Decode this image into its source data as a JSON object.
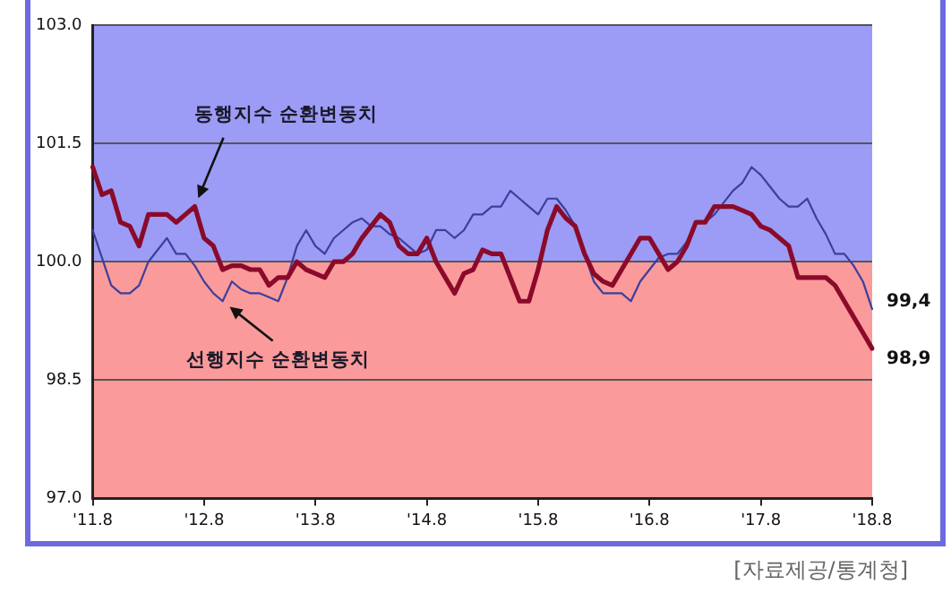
{
  "chart_data": {
    "type": "line",
    "categories": [
      "'11.8",
      null,
      null,
      null,
      null,
      null,
      null,
      null,
      null,
      null,
      null,
      null,
      "'12.8",
      null,
      null,
      null,
      null,
      null,
      null,
      null,
      null,
      null,
      null,
      null,
      "'13.8",
      null,
      null,
      null,
      null,
      null,
      null,
      null,
      null,
      null,
      null,
      null,
      "'14.8",
      null,
      null,
      null,
      null,
      null,
      null,
      null,
      null,
      null,
      null,
      null,
      "'15.8",
      null,
      null,
      null,
      null,
      null,
      null,
      null,
      null,
      null,
      null,
      null,
      "'16.8",
      null,
      null,
      null,
      null,
      null,
      null,
      null,
      null,
      null,
      null,
      null,
      "'17.8",
      null,
      null,
      null,
      null,
      null,
      null,
      null,
      null,
      null,
      null,
      null,
      "'18.8"
    ],
    "series": [
      {
        "name": "동행지수 순환변동치",
        "color": "#8b0a2a",
        "values": [
          101.2,
          100.85,
          100.9,
          100.5,
          100.45,
          100.2,
          100.6,
          100.6,
          100.6,
          100.5,
          100.6,
          100.7,
          100.3,
          100.2,
          99.9,
          99.95,
          99.95,
          99.9,
          99.9,
          99.7,
          99.8,
          99.8,
          100.0,
          99.9,
          99.85,
          99.8,
          100.0,
          100.0,
          100.1,
          100.3,
          100.45,
          100.6,
          100.5,
          100.2,
          100.1,
          100.1,
          100.3,
          100.0,
          99.8,
          99.6,
          99.85,
          99.9,
          100.15,
          100.1,
          100.1,
          99.8,
          99.5,
          99.5,
          99.9,
          100.4,
          100.7,
          100.55,
          100.45,
          100.1,
          99.85,
          99.75,
          99.7,
          99.9,
          100.1,
          100.3,
          100.3,
          100.1,
          99.9,
          100.0,
          100.2,
          100.5,
          100.5,
          100.7,
          100.7,
          100.7,
          100.65,
          100.6,
          100.45,
          100.4,
          100.3,
          100.2,
          99.8,
          99.8,
          99.8,
          99.8,
          99.7,
          99.5,
          99.3,
          99.1,
          98.9
        ],
        "value_labels": [
          null,
          null,
          null,
          null,
          null,
          null,
          null,
          null,
          null,
          null,
          null,
          null,
          null,
          null,
          null,
          null,
          null,
          null,
          null,
          null,
          null,
          null,
          null,
          null,
          null,
          null,
          null,
          null,
          null,
          null,
          null,
          null,
          null,
          null,
          null,
          null,
          null,
          null,
          null,
          null,
          null,
          null,
          null,
          null,
          null,
          null,
          null,
          null,
          null,
          null,
          null,
          null,
          null,
          null,
          null,
          null,
          null,
          null,
          null,
          null,
          null,
          null,
          null,
          null,
          null,
          null,
          null,
          null,
          null,
          null,
          null,
          null,
          null,
          null,
          null,
          null,
          null,
          null,
          null,
          null,
          null,
          null,
          null,
          null,
          "98,9"
        ]
      },
      {
        "name": "선행지수 순환변동치",
        "color": "#3b3f9e",
        "values": [
          100.4,
          100.05,
          99.7,
          99.6,
          99.6,
          99.7,
          100.0,
          100.15,
          100.3,
          100.1,
          100.1,
          99.95,
          99.75,
          99.6,
          99.5,
          99.75,
          99.65,
          99.6,
          99.6,
          99.55,
          99.5,
          99.8,
          100.2,
          100.4,
          100.2,
          100.1,
          100.3,
          100.4,
          100.5,
          100.55,
          100.45,
          100.45,
          100.35,
          100.3,
          100.2,
          100.1,
          100.15,
          100.4,
          100.4,
          100.3,
          100.4,
          100.6,
          100.6,
          100.7,
          100.7,
          100.9,
          100.8,
          100.7,
          100.6,
          100.8,
          100.8,
          100.65,
          100.45,
          100.1,
          99.75,
          99.6,
          99.6,
          99.6,
          99.5,
          99.75,
          99.9,
          100.05,
          100.1,
          100.1,
          100.25,
          100.5,
          100.5,
          100.6,
          100.75,
          100.9,
          101.0,
          101.2,
          101.1,
          100.95,
          100.8,
          100.7,
          100.7,
          100.8,
          100.55,
          100.35,
          100.1,
          100.1,
          99.95,
          99.75,
          99.4
        ],
        "value_labels": [
          null,
          null,
          null,
          null,
          null,
          null,
          null,
          null,
          null,
          null,
          null,
          null,
          null,
          null,
          null,
          null,
          null,
          null,
          null,
          null,
          null,
          null,
          null,
          null,
          null,
          null,
          null,
          null,
          null,
          null,
          null,
          null,
          null,
          null,
          null,
          null,
          null,
          null,
          null,
          null,
          null,
          null,
          null,
          null,
          null,
          null,
          null,
          null,
          null,
          null,
          null,
          null,
          null,
          null,
          null,
          null,
          null,
          null,
          null,
          null,
          null,
          null,
          null,
          null,
          null,
          null,
          null,
          null,
          null,
          null,
          null,
          null,
          null,
          null,
          null,
          null,
          null,
          null,
          null,
          null,
          null,
          null,
          null,
          null,
          "99,4"
        ]
      }
    ],
    "ylim": [
      97.0,
      103.0
    ],
    "yticks": [
      {
        "value": 97,
        "label": "97.0"
      },
      {
        "value": 98.5,
        "label": "98.5"
      },
      {
        "value": 100,
        "label": "100.0"
      },
      {
        "value": 101.5,
        "label": "101.5"
      },
      {
        "value": 103,
        "label": "103.0"
      }
    ],
    "bands": [
      {
        "axis": "y",
        "from": 100,
        "to": 103,
        "label": null,
        "color": "#9c9cf6"
      },
      {
        "axis": "y",
        "from": 97,
        "to": 100,
        "label": null,
        "color": "#fb9a9a"
      }
    ],
    "grid": "y",
    "legend": false,
    "marker": "none",
    "line_style": "solid",
    "annotations": [
      "[자료제공/통계청]"
    ]
  }
}
